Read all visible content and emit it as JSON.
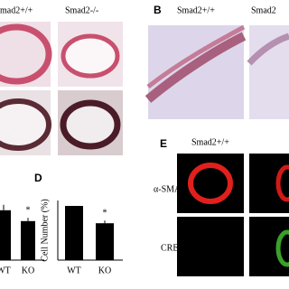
{
  "panels": {
    "a": {
      "left_label": "mad2+/+",
      "right_label": "Smad2-/-"
    },
    "b": {
      "letter": "B",
      "left_label": "Smad2+/+",
      "right_label": "Smad2"
    },
    "d": {
      "letter": "D"
    },
    "e": {
      "letter": "E",
      "column_label": "Smad2+/+",
      "row1": "α-SMA",
      "row2": "CRE"
    }
  },
  "chart_data": [
    {
      "type": "bar",
      "categories": [
        "WT",
        "KO"
      ],
      "values": [
        92,
        72
      ],
      "errors": [
        10,
        6
      ],
      "color": "#000000",
      "ylim": [
        0,
        110
      ],
      "annotation": "*"
    },
    {
      "type": "bar",
      "y_label": "Cell Number (%)",
      "categories": [
        "WT",
        "KO"
      ],
      "values": [
        100,
        68
      ],
      "errors": [
        0,
        5
      ],
      "color": "#000000",
      "ylim": [
        0,
        110
      ],
      "annotation": "*"
    }
  ]
}
